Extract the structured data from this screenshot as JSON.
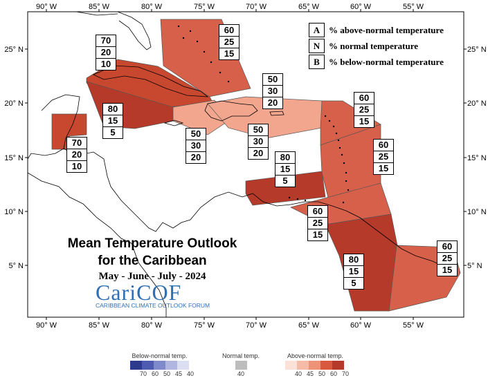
{
  "title": {
    "line1": "Mean Temperature Outlook",
    "line2": "for the Caribbean",
    "period": "May - June - July - 2024"
  },
  "logo": {
    "name": "CariCOF",
    "subtitle": "CARIBBEAN CLIMATE OUTLOOK FORUM"
  },
  "key": [
    {
      "letter": "A",
      "text": "% above-normal temperature"
    },
    {
      "letter": "N",
      "text": "% normal temperature"
    },
    {
      "letter": "B",
      "text": "% below-normal temperature"
    }
  ],
  "axes": {
    "bottom_lon": [
      "90° W",
      "85° W",
      "80° W",
      "75° W",
      "70° W",
      "65° W",
      "60° W",
      "55° W"
    ],
    "top_lon": [
      "90° W",
      "85° W",
      "80° W",
      "75° W",
      "70° W",
      "65° W",
      "60° W",
      "55° W"
    ],
    "left_lat": [
      "25° N",
      "20° N",
      "15° N",
      "10° N",
      "5° N"
    ],
    "right_lat": [
      "25° N",
      "20° N",
      "15° N",
      "10° N",
      "5° N"
    ]
  },
  "regions": [
    {
      "id": "bahamas",
      "above": 60,
      "normal": 25,
      "below": 15,
      "color": "#d6604a"
    },
    {
      "id": "cuba-cayman",
      "above": 70,
      "normal": 20,
      "below": 10,
      "color": "#c8482f"
    },
    {
      "id": "jamaica",
      "above": 80,
      "normal": 15,
      "below": 5,
      "color": "#b53a2a"
    },
    {
      "id": "belize",
      "above": 70,
      "normal": 20,
      "below": 10,
      "color": "#c8482f"
    },
    {
      "id": "hispaniola-west",
      "above": 50,
      "normal": 30,
      "below": 20,
      "color": "#f2a68e"
    },
    {
      "id": "hispaniola-puerto-rico",
      "above": 50,
      "normal": 30,
      "below": 20,
      "color": "#f2a68e"
    },
    {
      "id": "south-puerto-rico-sea",
      "above": 50,
      "normal": 30,
      "below": 20,
      "color": "#f2a68e"
    },
    {
      "id": "leeward-islands",
      "above": 60,
      "normal": 25,
      "below": 15,
      "color": "#d6604a"
    },
    {
      "id": "windward-islands",
      "above": 60,
      "normal": 25,
      "below": 15,
      "color": "#d6604a"
    },
    {
      "id": "abc-islands",
      "above": 80,
      "normal": 15,
      "below": 5,
      "color": "#b53a2a"
    },
    {
      "id": "trinidad",
      "above": 60,
      "normal": 25,
      "below": 15,
      "color": "#d6604a"
    },
    {
      "id": "guyana",
      "above": 80,
      "normal": 15,
      "below": 5,
      "color": "#b53a2a"
    },
    {
      "id": "french-guiana-suriname",
      "above": 60,
      "normal": 25,
      "below": 15,
      "color": "#d6604a"
    }
  ],
  "legend": {
    "below": {
      "title": "Below-normal temp.",
      "ticks": [
        "70",
        "60",
        "50",
        "45",
        "40"
      ],
      "colors": [
        "#2e3a8c",
        "#4d5cb0",
        "#7f8acb",
        "#b0b6e0",
        "#dcdff2"
      ]
    },
    "normal": {
      "title": "Normal temp.",
      "ticks": [
        "40"
      ],
      "colors": [
        "#bdbdbd"
      ]
    },
    "above": {
      "title": "Above-normal temp.",
      "ticks": [
        "40",
        "45",
        "50",
        "60",
        "70"
      ],
      "colors": [
        "#fbe1d8",
        "#f6bba6",
        "#ee9378",
        "#d9593e",
        "#b53a2a"
      ]
    }
  }
}
